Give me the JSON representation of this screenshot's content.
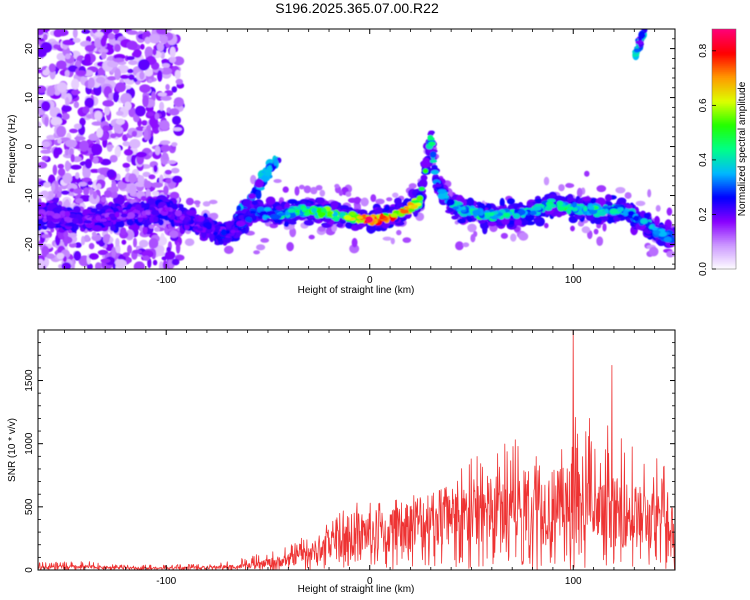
{
  "title": "S196.2025.365.07.00.R22",
  "chart_data": [
    {
      "type": "heatmap",
      "title": "S196.2025.365.07.00.R22",
      "xlabel": "Height of straight line (km)",
      "ylabel": "Frequency (Hz)",
      "xlim": [
        -163,
        150
      ],
      "ylim": [
        -25,
        24
      ],
      "x_ticks": [
        -100,
        0,
        100
      ],
      "x_tick_labels": [
        "-100",
        "0",
        "100"
      ],
      "y_ticks": [
        -20,
        -10,
        0,
        10,
        20
      ],
      "y_tick_labels": [
        "-20",
        "-10",
        "0",
        "10",
        "20"
      ],
      "colorbar": {
        "label": "Normalized spectral amplitude",
        "range": [
          0,
          0.88
        ],
        "ticks": [
          0.0,
          0.2,
          0.4,
          0.6,
          0.8
        ],
        "tick_labels": [
          "0.0",
          "0.2",
          "0.4",
          "0.6",
          "0.8"
        ],
        "colormap": [
          "#ffffff",
          "#cc99ff",
          "#8800ff",
          "#0000ff",
          "#00b8ff",
          "#00ff88",
          "#22ff00",
          "#ddff00",
          "#ff9900",
          "#ff0000",
          "#ff0077"
        ]
      },
      "ridge": {
        "x": [
          -163,
          -140,
          -120,
          -100,
          -85,
          -70,
          -55,
          -45,
          -30,
          -15,
          0,
          15,
          25,
          30,
          33,
          40,
          55,
          70,
          90,
          110,
          125,
          140,
          150
        ],
        "frequency": [
          -14,
          -15,
          -14,
          -13,
          -16,
          -18,
          -13,
          -14,
          -13,
          -14,
          -15,
          -14,
          -11,
          2,
          -8,
          -12,
          -14,
          -14,
          -12,
          -13,
          -13,
          -17,
          -19
        ],
        "amplitude": [
          0.2,
          0.22,
          0.2,
          0.2,
          0.25,
          0.25,
          0.3,
          0.4,
          0.5,
          0.55,
          0.8,
          0.75,
          0.6,
          0.45,
          0.3,
          0.4,
          0.45,
          0.4,
          0.45,
          0.45,
          0.4,
          0.35,
          0.3
        ]
      },
      "secondary_features": [
        {
          "x": [
            -70,
            -45
          ],
          "frequency": [
            -18,
            -2
          ],
          "amplitude": 0.3
        },
        {
          "x": [
            -150,
            -100
          ],
          "frequency": [
            -25,
            24
          ],
          "amplitude": 0.12
        },
        {
          "x": [
            130,
            135
          ],
          "frequency": [
            18,
            24
          ],
          "amplitude": 0.3
        }
      ]
    },
    {
      "type": "line",
      "xlabel": "Height of straight line (km)",
      "ylabel": "SNR (10 * v/v)",
      "xlim": [
        -163,
        150
      ],
      "ylim": [
        0,
        1900
      ],
      "x_ticks": [
        -100,
        0,
        100
      ],
      "x_tick_labels": [
        "-100",
        "0",
        "100"
      ],
      "y_ticks": [
        0,
        500,
        1000,
        1500
      ],
      "y_tick_labels": [
        "0",
        "500",
        "1000",
        "1500"
      ],
      "color": "#ee3333",
      "envelope": {
        "x": [
          -163,
          -140,
          -120,
          -100,
          -80,
          -60,
          -40,
          -20,
          -10,
          0,
          10,
          20,
          30,
          40,
          50,
          60,
          70,
          80,
          90,
          95,
          100,
          110,
          120,
          130,
          140,
          150
        ],
        "mean": [
          20,
          25,
          15,
          15,
          20,
          30,
          80,
          180,
          280,
          300,
          300,
          360,
          420,
          380,
          450,
          480,
          500,
          480,
          500,
          500,
          550,
          420,
          460,
          430,
          380,
          420
        ],
        "peak": [
          60,
          70,
          40,
          40,
          50,
          100,
          200,
          380,
          560,
          530,
          550,
          600,
          620,
          700,
          920,
          950,
          1050,
          950,
          1000,
          1050,
          1300,
          1050,
          1200,
          1000,
          900,
          860
        ]
      },
      "spikes": [
        {
          "x": 100,
          "y": 1900
        },
        {
          "x": 119,
          "y": 1620
        },
        {
          "x": 108,
          "y": 1200
        }
      ]
    }
  ]
}
